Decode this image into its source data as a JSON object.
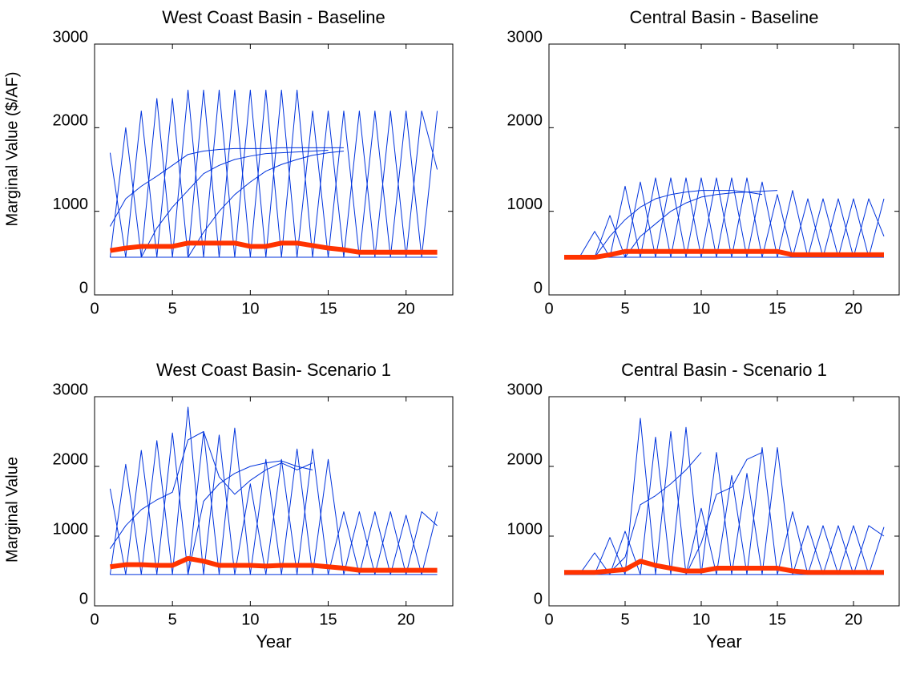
{
  "chart_data": [
    {
      "type": "line",
      "title": "West Coast Basin - Baseline",
      "ylabel": "Marginal Value ($/AF)",
      "x": [
        1,
        2,
        3,
        4,
        5,
        6,
        7,
        8,
        9,
        10,
        11,
        12,
        13,
        14,
        15,
        16,
        17,
        18,
        19,
        20,
        21,
        22
      ],
      "xlim": [
        0,
        23
      ],
      "xticks": [
        0,
        5,
        10,
        15,
        20
      ],
      "ylim": [
        0,
        3000
      ],
      "yticks": [
        0,
        1000,
        2000,
        3000
      ],
      "series": [
        {
          "color": "#0033dd",
          "width": 1,
          "values": [
            1700,
            450,
            2200,
            450,
            2350,
            450,
            2450,
            450,
            2450,
            450,
            2450,
            450,
            2450,
            450,
            2200,
            450,
            2200,
            450,
            2200,
            450,
            2200,
            1500
          ]
        },
        {
          "color": "#0033dd",
          "width": 1,
          "values": [
            450,
            2000,
            450,
            2350,
            450,
            2450,
            450,
            2450,
            450,
            2450,
            450,
            2450,
            450,
            2200,
            450,
            2200,
            450,
            2200,
            450,
            2200,
            450,
            2200
          ]
        },
        {
          "color": "#0033dd",
          "width": 1,
          "values": [
            820,
            1150,
            1300,
            1420,
            1550,
            1680,
            1720,
            1740,
            1750,
            1750,
            1750,
            1760,
            1760,
            1760,
            1760,
            1760,
            null,
            null,
            null,
            null,
            null,
            null
          ]
        },
        {
          "color": "#0033dd",
          "width": 1,
          "values": [
            null,
            null,
            450,
            800,
            1050,
            1250,
            1450,
            1550,
            1620,
            1660,
            1690,
            1700,
            1710,
            1720,
            1730,
            null,
            null,
            null,
            null,
            null,
            null,
            null
          ]
        },
        {
          "color": "#0033dd",
          "width": 1,
          "values": [
            null,
            null,
            null,
            null,
            null,
            450,
            750,
            1000,
            1200,
            1350,
            1480,
            1560,
            1620,
            1670,
            1700,
            1720,
            null,
            null,
            null,
            null,
            null,
            null
          ]
        },
        {
          "color": "#0033dd",
          "width": 1,
          "values": [
            450,
            450,
            450,
            450,
            450,
            450,
            450,
            450,
            450,
            450,
            450,
            450,
            450,
            450,
            450,
            450,
            450,
            450,
            450,
            450,
            450,
            450
          ]
        },
        {
          "color": "#ff3300",
          "width": 6,
          "values": [
            530,
            560,
            580,
            580,
            580,
            620,
            620,
            620,
            620,
            580,
            580,
            620,
            620,
            590,
            560,
            540,
            510,
            510,
            510,
            510,
            510,
            510
          ]
        }
      ]
    },
    {
      "type": "line",
      "title": "Central Basin - Baseline",
      "x": [
        1,
        2,
        3,
        4,
        5,
        6,
        7,
        8,
        9,
        10,
        11,
        12,
        13,
        14,
        15,
        16,
        17,
        18,
        19,
        20,
        21,
        22
      ],
      "xlim": [
        0,
        23
      ],
      "xticks": [
        0,
        5,
        10,
        15,
        20
      ],
      "ylim": [
        0,
        3000
      ],
      "yticks": [
        0,
        1000,
        2000,
        3000
      ],
      "series": [
        {
          "color": "#0033dd",
          "width": 1,
          "values": [
            450,
            450,
            760,
            450,
            1300,
            450,
            1400,
            450,
            1400,
            450,
            1400,
            450,
            1400,
            450,
            1200,
            450,
            1150,
            450,
            1150,
            450,
            1150,
            700
          ]
        },
        {
          "color": "#0033dd",
          "width": 1,
          "values": [
            450,
            450,
            450,
            950,
            450,
            1350,
            450,
            1400,
            450,
            1400,
            450,
            1400,
            450,
            1350,
            450,
            1250,
            450,
            1150,
            450,
            1150,
            450,
            1150
          ]
        },
        {
          "color": "#0033dd",
          "width": 1,
          "values": [
            null,
            null,
            450,
            700,
            900,
            1050,
            1150,
            1200,
            1230,
            1250,
            1250,
            1250,
            1230,
            1200,
            null,
            null,
            null,
            null,
            null,
            null,
            null,
            null
          ]
        },
        {
          "color": "#0033dd",
          "width": 1,
          "values": [
            null,
            null,
            null,
            null,
            450,
            700,
            850,
            1000,
            1100,
            1170,
            1200,
            1220,
            1230,
            1240,
            1250,
            null,
            null,
            null,
            null,
            null,
            null,
            null
          ]
        },
        {
          "color": "#0033dd",
          "width": 1,
          "values": [
            450,
            450,
            450,
            450,
            450,
            450,
            450,
            450,
            450,
            450,
            450,
            450,
            450,
            450,
            450,
            450,
            450,
            450,
            450,
            450,
            450,
            450
          ]
        },
        {
          "color": "#ff3300",
          "width": 6,
          "values": [
            450,
            450,
            450,
            480,
            520,
            520,
            520,
            520,
            520,
            520,
            520,
            520,
            520,
            520,
            520,
            480,
            480,
            480,
            480,
            480,
            480,
            480
          ]
        }
      ]
    },
    {
      "type": "line",
      "title": "West Coast Basin- Scenario 1",
      "ylabel": "Marginal Value",
      "xlabel": "Year",
      "x": [
        1,
        2,
        3,
        4,
        5,
        6,
        7,
        8,
        9,
        10,
        11,
        12,
        13,
        14,
        15,
        16,
        17,
        18,
        19,
        20,
        21,
        22
      ],
      "xlim": [
        0,
        23
      ],
      "xticks": [
        0,
        5,
        10,
        15,
        20
      ],
      "ylim": [
        0,
        3000
      ],
      "yticks": [
        0,
        1000,
        2000,
        3000
      ],
      "series": [
        {
          "color": "#0033dd",
          "width": 1,
          "values": [
            1680,
            450,
            2230,
            450,
            2480,
            450,
            2500,
            450,
            2550,
            450,
            2100,
            450,
            2250,
            450,
            2100,
            450,
            1350,
            450,
            1350,
            450,
            1350,
            1150
          ]
        },
        {
          "color": "#0033dd",
          "width": 1,
          "values": [
            450,
            2030,
            450,
            2370,
            450,
            2850,
            450,
            2450,
            450,
            1750,
            450,
            2100,
            450,
            2250,
            450,
            1350,
            450,
            1350,
            450,
            1300,
            450,
            1350
          ]
        },
        {
          "color": "#0033dd",
          "width": 1,
          "values": [
            820,
            1150,
            1380,
            1520,
            1630,
            2380,
            2500,
            1850,
            1600,
            1800,
            1950,
            2050,
            1950,
            2050,
            null,
            null,
            null,
            null,
            null,
            null,
            null,
            null
          ]
        },
        {
          "color": "#0033dd",
          "width": 1,
          "values": [
            null,
            null,
            null,
            null,
            null,
            450,
            1500,
            1750,
            1900,
            2000,
            2050,
            2080,
            2000,
            1950,
            null,
            null,
            null,
            null,
            null,
            null,
            null,
            null
          ]
        },
        {
          "color": "#0033dd",
          "width": 1,
          "values": [
            450,
            450,
            450,
            450,
            450,
            450,
            450,
            450,
            450,
            450,
            450,
            450,
            450,
            450,
            450,
            450,
            450,
            450,
            450,
            450,
            450,
            450
          ]
        },
        {
          "color": "#ff3300",
          "width": 6,
          "values": [
            560,
            590,
            590,
            580,
            580,
            680,
            640,
            580,
            580,
            580,
            570,
            580,
            580,
            580,
            560,
            540,
            510,
            510,
            510,
            510,
            510,
            510
          ]
        }
      ]
    },
    {
      "type": "line",
      "title": "Central Basin - Scenario 1",
      "xlabel": "Year",
      "x": [
        1,
        2,
        3,
        4,
        5,
        6,
        7,
        8,
        9,
        10,
        11,
        12,
        13,
        14,
        15,
        16,
        17,
        18,
        19,
        20,
        21,
        22
      ],
      "xlim": [
        0,
        23
      ],
      "xticks": [
        0,
        5,
        10,
        15,
        20
      ],
      "ylim": [
        0,
        3000
      ],
      "yticks": [
        0,
        1000,
        2000,
        3000
      ],
      "series": [
        {
          "color": "#0033dd",
          "width": 1,
          "values": [
            450,
            450,
            760,
            450,
            1070,
            450,
            2420,
            450,
            2560,
            450,
            2200,
            450,
            1900,
            450,
            2270,
            450,
            1150,
            450,
            1150,
            450,
            1150,
            1000
          ]
        },
        {
          "color": "#0033dd",
          "width": 1,
          "values": [
            450,
            450,
            450,
            980,
            450,
            2690,
            450,
            2500,
            450,
            1400,
            450,
            1870,
            450,
            2270,
            450,
            1350,
            450,
            1150,
            450,
            1150,
            450,
            1130
          ]
        },
        {
          "color": "#0033dd",
          "width": 1,
          "values": [
            null,
            null,
            null,
            480,
            700,
            1450,
            1580,
            1750,
            1950,
            2200,
            null,
            null,
            null,
            null,
            null,
            null,
            null,
            null,
            null,
            null,
            null,
            null
          ]
        },
        {
          "color": "#0033dd",
          "width": 1,
          "values": [
            null,
            null,
            null,
            null,
            null,
            null,
            null,
            null,
            450,
            900,
            1600,
            1700,
            2100,
            2200,
            null,
            null,
            null,
            null,
            null,
            null,
            null,
            null
          ]
        },
        {
          "color": "#0033dd",
          "width": 1,
          "values": [
            450,
            450,
            450,
            450,
            450,
            450,
            450,
            450,
            450,
            450,
            450,
            450,
            450,
            450,
            450,
            450,
            450,
            450,
            450,
            450,
            450,
            450
          ]
        },
        {
          "color": "#ff3300",
          "width": 6,
          "values": [
            480,
            480,
            480,
            500,
            520,
            640,
            580,
            540,
            500,
            500,
            540,
            540,
            540,
            540,
            540,
            500,
            480,
            480,
            480,
            480,
            480,
            480
          ]
        }
      ]
    }
  ]
}
